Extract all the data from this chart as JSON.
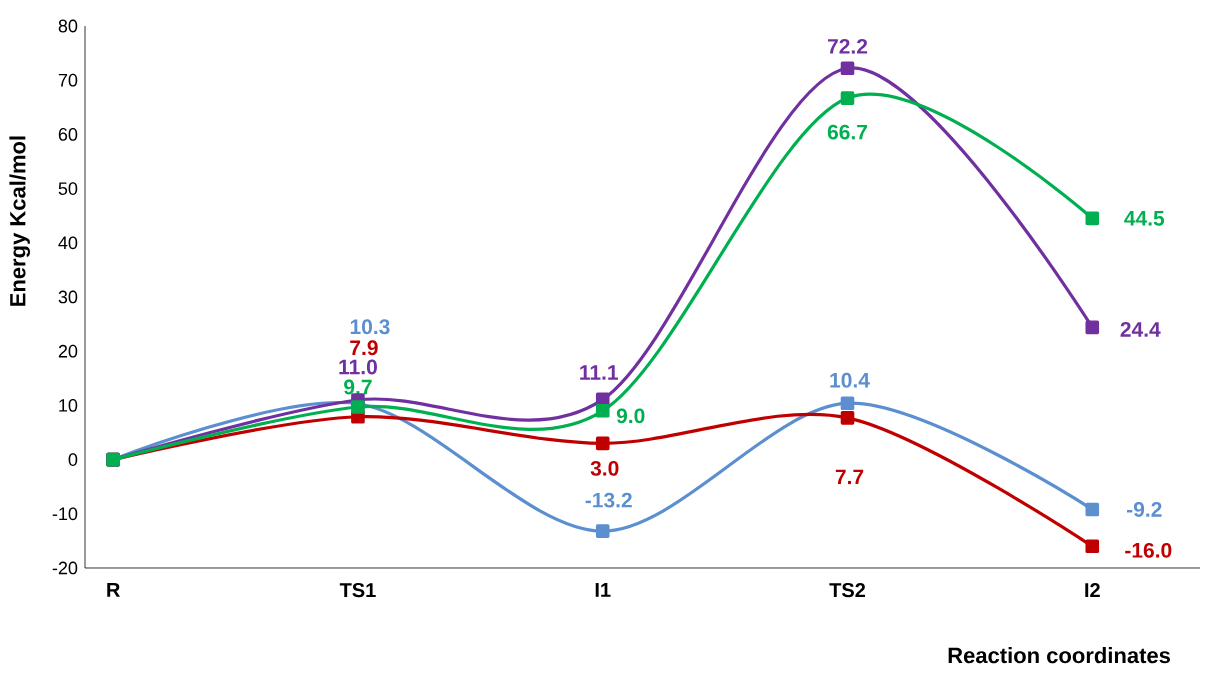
{
  "chart_data": {
    "type": "line",
    "xlabel": "Reaction coordinates",
    "ylabel": "Energy Kcal/mol",
    "categories": [
      "R",
      "TS1",
      "I1",
      "TS2",
      "I2"
    ],
    "ylim": [
      -20,
      80
    ],
    "yticks": [
      -20,
      -10,
      0,
      10,
      20,
      30,
      40,
      50,
      60,
      70,
      80
    ],
    "grid": false,
    "marker": "square",
    "line_style": "solid",
    "series": [
      {
        "color": "#5b8fd0",
        "values": [
          0,
          10.3,
          -13.2,
          10.4,
          -9.2
        ],
        "value_labels": [
          null,
          "10.3",
          "-13.2",
          "10.4",
          "-9.2"
        ]
      },
      {
        "color": "#c00000",
        "values": [
          0,
          7.9,
          3.0,
          7.7,
          -16.0
        ],
        "value_labels": [
          null,
          "7.9",
          "3.0",
          "7.7",
          "-16.0"
        ]
      },
      {
        "color": "#7030a0",
        "values": [
          0,
          11.0,
          11.1,
          72.2,
          24.4
        ],
        "value_labels": [
          null,
          "11.0",
          "11.1",
          "72.2",
          "24.4"
        ]
      },
      {
        "color": "#00b050",
        "values": [
          0,
          9.7,
          9.0,
          66.7,
          44.5
        ],
        "value_labels": [
          null,
          "9.7",
          "9.0",
          "66.7",
          "44.5"
        ]
      }
    ]
  }
}
